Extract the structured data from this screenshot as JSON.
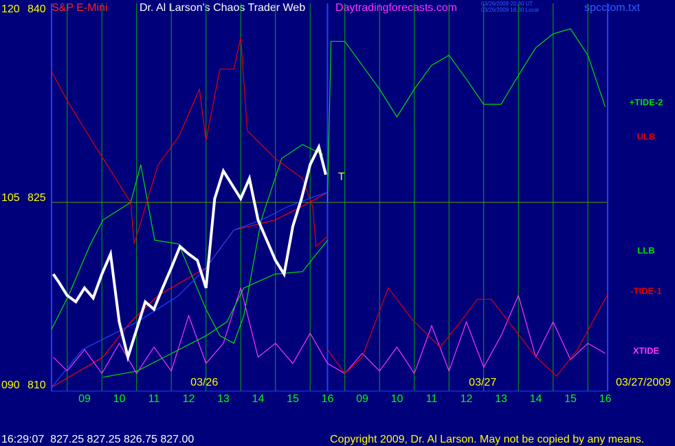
{
  "chart_data": {
    "type": "line",
    "title": "Dr. Al Larson's Chaos Trader Web",
    "symbol": "S&P E-Mini",
    "site": "Daytradingforecasts.com",
    "timestamps": [
      "03/26/2009 20:30 UT",
      "03/26/2009 16:30 Local"
    ],
    "file": "spcctom.txt",
    "status": "16:29:07  827.25 827.25 826.75 827.00",
    "copyright": "Copyright 2009, Dr. Al Larson. May not be copied by any means.",
    "xlim": [
      -0.95,
      15.07
    ],
    "xticks": [
      {
        "value": 0,
        "label": "09"
      },
      {
        "value": 1,
        "label": "10"
      },
      {
        "value": 2,
        "label": "11"
      },
      {
        "value": 3,
        "label": "12"
      },
      {
        "value": 4,
        "label": "13"
      },
      {
        "value": 5,
        "label": "14"
      },
      {
        "value": 6,
        "label": "15"
      },
      {
        "value": 7,
        "label": "16"
      },
      {
        "value": 8,
        "label": "09"
      },
      {
        "value": 9,
        "label": "10"
      },
      {
        "value": 10,
        "label": "11"
      },
      {
        "value": 11,
        "label": "12"
      },
      {
        "value": 12,
        "label": "13"
      },
      {
        "value": 13,
        "label": "14"
      },
      {
        "value": 14,
        "label": "15"
      },
      {
        "value": 15,
        "label": "16"
      }
    ],
    "x_grid": [
      -0.5,
      0.5,
      1.5,
      2.5,
      3.5,
      4.5,
      5.5,
      6.5,
      7.5,
      8.5,
      9.5,
      10.5,
      11.5,
      12.5,
      13.5,
      14.5
    ],
    "now_x": 7,
    "ylim": [
      810,
      840
    ],
    "yticks": [
      840,
      825,
      810
    ],
    "y_grid": [
      825
    ],
    "y2lim": [
      90,
      120
    ],
    "y2ticks": [
      120,
      105,
      {
        "value": 90,
        "label": "090"
      }
    ],
    "annotations": [
      {
        "text": "03/26",
        "x": 3.45
      },
      {
        "text": "03/27",
        "x": 11.47
      },
      {
        "text": "03/27/2009",
        "x": 16.1
      }
    ],
    "marker": {
      "text": "T",
      "x": 7.4,
      "y": 827.0
    },
    "series": [
      {
        "color": "#ff0000",
        "x": [
          -0.95,
          0.53,
          1.33,
          2.12,
          3.5,
          4.3,
          5.49,
          6.28,
          7
        ],
        "values": [
          810.3,
          812.7,
          815.5,
          817.6,
          819.8,
          822.8,
          823.6,
          824.7,
          825.8
        ]
      },
      {
        "name": "XTIDE",
        "color": "#ff33ff",
        "x": [
          -0.9,
          -0.5,
          0,
          0.5,
          1,
          1.5,
          2,
          2.5,
          3,
          3.5,
          4,
          4.5,
          5,
          5.5,
          6,
          6.5,
          7,
          7.5,
          8,
          8.5,
          9,
          9.5,
          10,
          10.5,
          11,
          11.5,
          12,
          12.5,
          13,
          13.5,
          14,
          14.5,
          15
        ],
        "values": [
          812.7,
          811.6,
          813.3,
          811.4,
          813.8,
          811.4,
          813.5,
          811.6,
          816.0,
          812.2,
          813.8,
          818.2,
          812.7,
          813.8,
          812.2,
          814.6,
          812.2,
          811.4,
          813.0,
          811.6,
          813.5,
          811.4,
          815.2,
          811.6,
          815.5,
          811.9,
          814.4,
          817.6,
          812.7,
          815.5,
          812.5,
          813.8,
          813.0
        ]
      },
      {
        "color": "#00e000",
        "x": [
          0.53,
          1.52,
          2.51,
          3.5,
          4.1,
          4.59,
          5.49,
          6.28,
          7
        ],
        "values": [
          811.1,
          811.6,
          813.0,
          814.4,
          815.5,
          818.2,
          819.3,
          819.5,
          822.0
        ]
      },
      {
        "name": "LLB",
        "color": "#00e000",
        "x": [
          -0.95,
          -0.46,
          0.14,
          0.53,
          1.33,
          1.62,
          2.02,
          2.71,
          3.5,
          3.9,
          4.3,
          4.59,
          5.09,
          5.68,
          6.28,
          6.87
        ],
        "values": [
          814.9,
          817.6,
          821.5,
          823.6,
          825.0,
          828.0,
          822.0,
          821.7,
          816.5,
          814.4,
          813.8,
          816.0,
          823.6,
          828.5,
          829.6,
          828.8
        ]
      },
      {
        "name": "ULB",
        "color": "#e00000",
        "x": [
          -0.95,
          -0.46,
          0.53,
          1.33,
          1.43,
          2.12,
          2.71,
          3.31,
          3.5,
          3.9,
          4.3,
          4.5,
          4.69,
          5.49,
          6.28,
          6.57,
          6.67,
          7
        ],
        "values": [
          835.4,
          832.9,
          828.5,
          825.0,
          821.7,
          828.0,
          830.2,
          834.0,
          829.9,
          835.6,
          835.6,
          838.1,
          830.7,
          828.5,
          826.9,
          824.7,
          821.5,
          822.3
        ]
      },
      {
        "color": "#2040ff",
        "x": [
          -0.95,
          -0.06,
          1.52,
          2.71,
          3.5,
          4.3,
          5.09,
          5.88,
          6.67,
          7
        ],
        "values": [
          810.3,
          813.3,
          815.5,
          817.6,
          819.8,
          822.8,
          823.6,
          824.7,
          825.5,
          825.8
        ]
      },
      {
        "color": "#ffffff",
        "x": [
          -0.9,
          -0.75,
          -0.5,
          -0.25,
          0,
          0.25,
          0.5,
          0.75,
          1,
          1.25,
          1.5,
          1.75,
          2,
          2.25,
          2.5,
          2.75,
          3,
          3.25,
          3.5,
          3.75,
          4,
          4.25,
          4.5,
          4.75,
          5,
          5.25,
          5.5,
          5.75,
          6,
          6.25,
          6.5,
          6.75,
          6.95
        ],
        "values": [
          819.3,
          818.7,
          817.6,
          817.1,
          818.2,
          817.4,
          819.3,
          820.9,
          815.5,
          812.7,
          814.9,
          817.1,
          816.5,
          818.2,
          819.8,
          821.5,
          820.9,
          820.4,
          818.2,
          825.3,
          827.5,
          826.4,
          825.3,
          826.9,
          823.6,
          822.0,
          820.4,
          819.3,
          823.1,
          825.3,
          828.0,
          829.4,
          827.2
        ]
      },
      {
        "name": "+TIDE-2",
        "color": "#00e000",
        "x": [
          7,
          7.1,
          7.5,
          8,
          8.5,
          9,
          9.5,
          10,
          10.5,
          11,
          11.5,
          12,
          12.5,
          13,
          13.5,
          14,
          14.5,
          15
        ],
        "values": [
          825.0,
          837.8,
          837.8,
          835.9,
          834.0,
          831.8,
          834.0,
          835.9,
          836.7,
          834.8,
          832.8,
          832.8,
          835.1,
          837.3,
          838.4,
          838.8,
          836.7,
          832.6
        ]
      },
      {
        "name": "-TIDE-1",
        "color": "#e00000",
        "x": [
          7,
          7.5,
          8,
          8.75,
          9.44,
          10.24,
          10.83,
          11.32,
          11.72,
          12.22,
          13.01,
          13.6,
          14.2,
          15.07
        ],
        "values": [
          813.3,
          811.4,
          812.7,
          818.2,
          815.7,
          813.5,
          815.5,
          817.3,
          817.3,
          815.5,
          812.7,
          811.2,
          813.3,
          817.7
        ]
      }
    ]
  }
}
